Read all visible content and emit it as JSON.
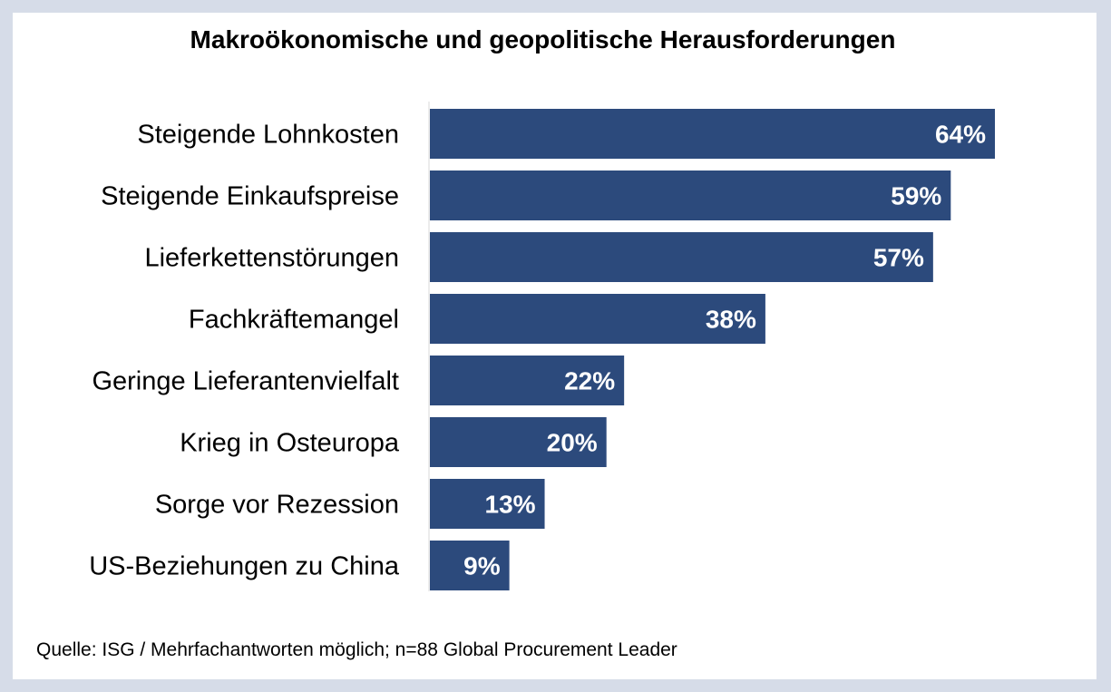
{
  "chart_data": {
    "type": "bar",
    "orientation": "horizontal",
    "title": "Makroökonomische und geopolitische Herausforderungen",
    "categories": [
      "Steigende Lohnkosten",
      "Steigende Einkaufspreise",
      "Lieferkettenstörungen",
      "Fachkräftemangel",
      "Geringe Lieferantenvielfalt",
      "Krieg in Osteuropa",
      "Sorge vor Rezession",
      "US-Beziehungen zu China"
    ],
    "values": [
      64,
      59,
      57,
      38,
      22,
      20,
      13,
      9
    ],
    "value_labels": [
      "64%",
      "59%",
      "57%",
      "38%",
      "22%",
      "20%",
      "13%",
      "9%"
    ],
    "unit": "%",
    "xlim": [
      0,
      64
    ],
    "bar_color": "#2c4a7c",
    "label_color": "#ffffff",
    "xlabel": "",
    "ylabel": "",
    "grid": false
  },
  "footer": {
    "source": "Quelle: ISG / Mehrfachantworten möglich; n=88 Global Procurement Leader"
  },
  "colors": {
    "page_background": "#d6dce8",
    "card_background": "#ffffff",
    "axis_line": "#d9d9d9"
  }
}
